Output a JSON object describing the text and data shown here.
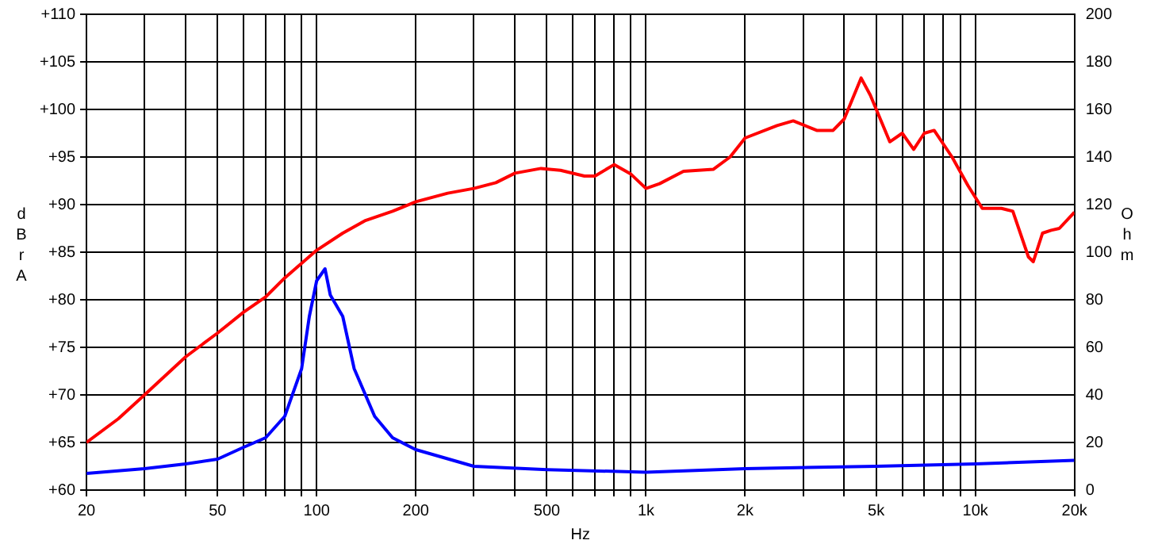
{
  "chart_data": {
    "type": "line",
    "xlabel": "Hz",
    "ylabel": "dBrA",
    "y2label": "Ohm",
    "log": "x",
    "grid": true,
    "legend": false,
    "marker": "none",
    "line_style": "solid",
    "xlim": [
      20,
      20000
    ],
    "xticks": [
      20,
      {
        "value": 30,
        "label": null
      },
      {
        "value": 40,
        "label": null
      },
      50,
      {
        "value": 60,
        "label": null
      },
      {
        "value": 70,
        "label": null
      },
      {
        "value": 80,
        "label": null
      },
      {
        "value": 90,
        "label": null
      },
      100,
      200,
      {
        "value": 300,
        "label": null
      },
      {
        "value": 400,
        "label": null
      },
      500,
      {
        "value": 600,
        "label": null
      },
      {
        "value": 700,
        "label": null
      },
      {
        "value": 800,
        "label": null
      },
      {
        "value": 900,
        "label": null
      },
      {
        "value": 1000,
        "label": "1k"
      },
      {
        "value": 2000,
        "label": "2k"
      },
      {
        "value": 3000,
        "label": null
      },
      {
        "value": 4000,
        "label": null
      },
      {
        "value": 5000,
        "label": "5k"
      },
      {
        "value": 6000,
        "label": null
      },
      {
        "value": 7000,
        "label": null
      },
      {
        "value": 8000,
        "label": null
      },
      {
        "value": 9000,
        "label": null
      },
      {
        "value": 10000,
        "label": "10k"
      },
      {
        "value": 20000,
        "label": "20k"
      }
    ],
    "ylim": [
      60,
      110
    ],
    "yticks": [
      {
        "value": 60,
        "label": "+60"
      },
      {
        "value": 65,
        "label": "+65"
      },
      {
        "value": 70,
        "label": "+70"
      },
      {
        "value": 75,
        "label": "+75"
      },
      {
        "value": 80,
        "label": "+80"
      },
      {
        "value": 85,
        "label": "+85"
      },
      {
        "value": 90,
        "label": "+90"
      },
      {
        "value": 95,
        "label": "+95"
      },
      {
        "value": 100,
        "label": "+100"
      },
      {
        "value": 105,
        "label": "+105"
      },
      {
        "value": 110,
        "label": "+110"
      }
    ],
    "y2lim": [
      0,
      200
    ],
    "y2ticks": [
      0,
      20,
      40,
      60,
      80,
      100,
      120,
      140,
      160,
      180,
      200
    ],
    "series": [
      {
        "color": "#ff0000",
        "x": [
          20,
          25,
          30,
          40,
          50,
          60,
          70,
          80,
          100,
          120,
          140,
          170,
          200,
          250,
          300,
          350,
          400,
          480,
          550,
          650,
          700,
          800,
          900,
          1000,
          1100,
          1300,
          1600,
          1800,
          2000,
          2500,
          2800,
          3300,
          3700,
          4000,
          4500,
          4800,
          5500,
          6000,
          6500,
          7000,
          7500,
          8500,
          9500,
          10500,
          12000,
          13000,
          14500,
          15000,
          16000,
          17000,
          18000,
          20000
        ],
        "values": [
          65,
          67.5,
          70,
          74,
          76.5,
          78.7,
          80.3,
          82.3,
          85.2,
          87,
          88.3,
          89.3,
          90.3,
          91.2,
          91.7,
          92.3,
          93.3,
          93.8,
          93.6,
          93,
          93,
          94.2,
          93.2,
          91.7,
          92.2,
          93.5,
          93.7,
          95,
          97,
          98.3,
          98.8,
          97.8,
          97.8,
          99,
          103.3,
          101.5,
          96.6,
          97.5,
          95.8,
          97.5,
          97.8,
          95,
          92,
          89.6,
          89.6,
          89.3,
          84.5,
          84,
          87,
          87.3,
          87.5,
          89.2
        ]
      },
      {
        "color": "#0000ff",
        "axis": "y2",
        "x": [
          20,
          30,
          40,
          50,
          60,
          70,
          80,
          90,
          95,
          100,
          106,
          110,
          120,
          130,
          150,
          170,
          200,
          300,
          500,
          1000,
          2000,
          5000,
          10000,
          20000
        ],
        "values": [
          7,
          9,
          11,
          13,
          18,
          22,
          31,
          51,
          73,
          88,
          93,
          82,
          73,
          51,
          31,
          22,
          17,
          10,
          8.6,
          7.5,
          9,
          10,
          11,
          12.5
        ]
      }
    ]
  }
}
